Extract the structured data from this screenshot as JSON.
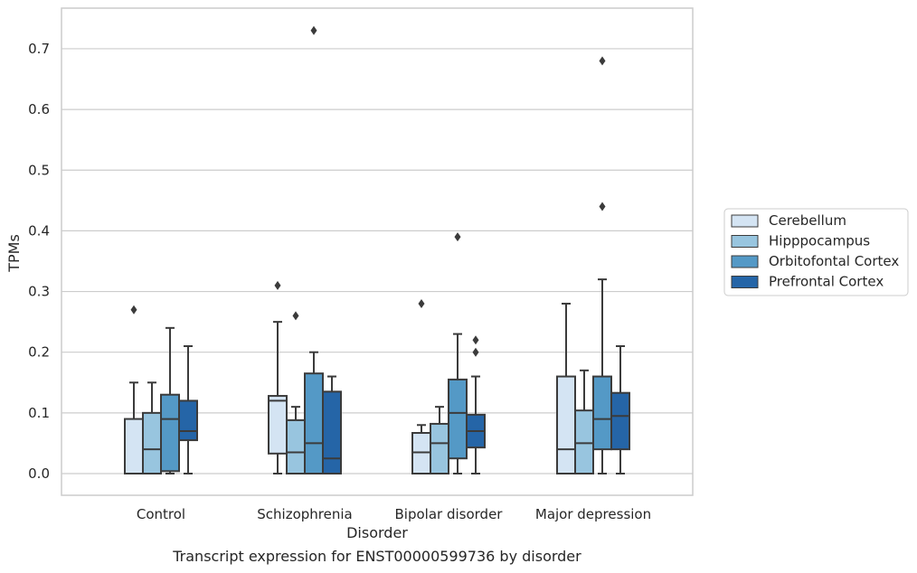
{
  "chart_data": {
    "type": "boxplot",
    "caption": "Transcript expression for ENST00000599736 by disorder",
    "xlabel": "Disorder",
    "ylabel": "TPMs",
    "ylim": [
      -0.035,
      0.765
    ],
    "yticks": [
      "0.0",
      "0.1",
      "0.2",
      "0.3",
      "0.4",
      "0.5",
      "0.6",
      "0.7"
    ],
    "grid": "horizontal",
    "legend_position": "right",
    "categories": [
      "Control",
      "Schizophrenia",
      "Bipolar disorder",
      "Major depression"
    ],
    "series": [
      {
        "name": "Cerebellum",
        "color": "#d4e4f3",
        "boxes": [
          {
            "whislo": 0.0,
            "q1": 0.0,
            "med": 0.0,
            "q3": 0.09,
            "whishi": 0.15,
            "fliers": [
              0.27
            ]
          },
          {
            "whislo": 0.0,
            "q1": 0.033,
            "med": 0.12,
            "q3": 0.128,
            "whishi": 0.25,
            "fliers": [
              0.31
            ]
          },
          {
            "whislo": 0.0,
            "q1": 0.0,
            "med": 0.035,
            "q3": 0.067,
            "whishi": 0.08,
            "fliers": [
              0.28
            ]
          },
          {
            "whislo": 0.0,
            "q1": 0.0,
            "med": 0.04,
            "q3": 0.16,
            "whishi": 0.28,
            "fliers": []
          }
        ]
      },
      {
        "name": "Hipppocampus",
        "color": "#98c5df",
        "boxes": [
          {
            "whislo": 0.0,
            "q1": 0.0,
            "med": 0.04,
            "q3": 0.1,
            "whishi": 0.15,
            "fliers": []
          },
          {
            "whislo": 0.0,
            "q1": 0.0,
            "med": 0.035,
            "q3": 0.088,
            "whishi": 0.11,
            "fliers": [
              0.26
            ]
          },
          {
            "whislo": 0.0,
            "q1": 0.0,
            "med": 0.05,
            "q3": 0.082,
            "whishi": 0.11,
            "fliers": []
          },
          {
            "whislo": 0.0,
            "q1": 0.0,
            "med": 0.05,
            "q3": 0.104,
            "whishi": 0.17,
            "fliers": []
          }
        ]
      },
      {
        "name": "Orbitofontal Cortex",
        "color": "#5499c6",
        "boxes": [
          {
            "whislo": 0.0,
            "q1": 0.004,
            "med": 0.09,
            "q3": 0.13,
            "whishi": 0.24,
            "fliers": []
          },
          {
            "whislo": 0.0,
            "q1": 0.0,
            "med": 0.05,
            "q3": 0.165,
            "whishi": 0.2,
            "fliers": [
              0.73
            ]
          },
          {
            "whislo": 0.0,
            "q1": 0.025,
            "med": 0.1,
            "q3": 0.155,
            "whishi": 0.23,
            "fliers": [
              0.39
            ]
          },
          {
            "whislo": 0.0,
            "q1": 0.04,
            "med": 0.09,
            "q3": 0.16,
            "whishi": 0.32,
            "fliers": [
              0.44,
              0.68
            ]
          }
        ]
      },
      {
        "name": "Prefrontal Cortex",
        "color": "#2565a7",
        "boxes": [
          {
            "whislo": 0.0,
            "q1": 0.055,
            "med": 0.07,
            "q3": 0.12,
            "whishi": 0.21,
            "fliers": []
          },
          {
            "whislo": 0.0,
            "q1": 0.0,
            "med": 0.025,
            "q3": 0.135,
            "whishi": 0.16,
            "fliers": []
          },
          {
            "whislo": 0.0,
            "q1": 0.043,
            "med": 0.07,
            "q3": 0.097,
            "whishi": 0.16,
            "fliers": [
              0.2,
              0.22
            ]
          },
          {
            "whislo": 0.0,
            "q1": 0.04,
            "med": 0.095,
            "q3": 0.133,
            "whishi": 0.21,
            "fliers": []
          }
        ]
      }
    ]
  }
}
